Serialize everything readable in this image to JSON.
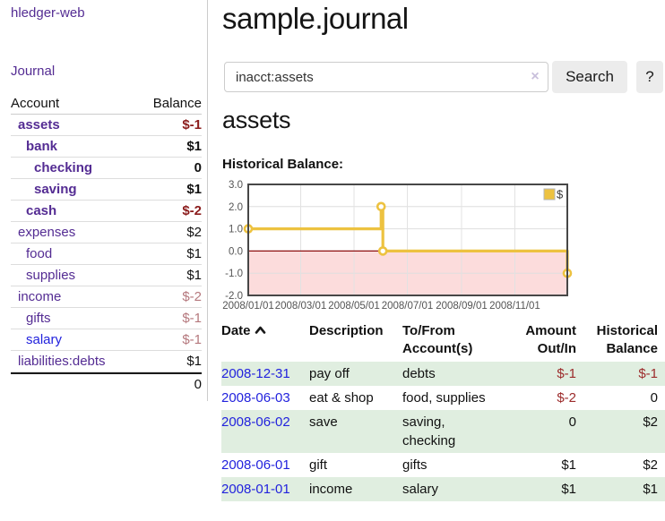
{
  "app": {
    "brand": "hledger-web"
  },
  "colors": {
    "link_purple": "#542c93",
    "link_blue": "#2222dd",
    "negative_strong": "#8b1c1c",
    "negative_muted": "#b5787d",
    "register_negative": "#9c2b2b",
    "row_shade_green": "#e0eee0",
    "button_gray": "#ececec",
    "chart_line_yellow": "#edc240",
    "chart_negative_fill": "#fcdcdc",
    "chart_zero_line": "#8e1111"
  },
  "sidebar": {
    "nav": {
      "journal_label": "Journal"
    },
    "accounts_table": {
      "headers": {
        "account": "Account",
        "balance": "Balance"
      },
      "rows": [
        {
          "name": "assets",
          "depth": 1,
          "bold": true,
          "balance": "$-1",
          "balance_style": "neg-strong",
          "link_style": "purple"
        },
        {
          "name": "bank",
          "depth": 2,
          "bold": true,
          "balance": "$1",
          "balance_style": "normal",
          "link_style": "purple"
        },
        {
          "name": "checking",
          "depth": 3,
          "bold": true,
          "balance": "0",
          "balance_style": "normal",
          "link_style": "purple"
        },
        {
          "name": "saving",
          "depth": 3,
          "bold": true,
          "balance": "$1",
          "balance_style": "normal",
          "link_style": "purple"
        },
        {
          "name": "cash",
          "depth": 2,
          "bold": true,
          "balance": "$-2",
          "balance_style": "neg-strong",
          "link_style": "purple"
        },
        {
          "name": "expenses",
          "depth": 1,
          "bold": false,
          "balance": "$2",
          "balance_style": "normal",
          "link_style": "purple"
        },
        {
          "name": "food",
          "depth": 2,
          "bold": false,
          "balance": "$1",
          "balance_style": "normal",
          "link_style": "purple"
        },
        {
          "name": "supplies",
          "depth": 2,
          "bold": false,
          "balance": "$1",
          "balance_style": "normal",
          "link_style": "purple"
        },
        {
          "name": "income",
          "depth": 1,
          "bold": false,
          "balance": "$-2",
          "balance_style": "neg-muted",
          "link_style": "purple"
        },
        {
          "name": "gifts",
          "depth": 2,
          "bold": false,
          "balance": "$-1",
          "balance_style": "neg-muted",
          "link_style": "purple"
        },
        {
          "name": "salary",
          "depth": 2,
          "bold": false,
          "balance": "$-1",
          "balance_style": "neg-muted",
          "link_style": "blue"
        },
        {
          "name": "liabilities:debts",
          "depth": 1,
          "bold": false,
          "balance": "$1",
          "balance_style": "normal",
          "link_style": "purple"
        }
      ],
      "total": "0"
    }
  },
  "main": {
    "title": "sample.journal",
    "search": {
      "value": "inacct:assets",
      "clear_icon": "×",
      "button_label": "Search",
      "help_label": "?"
    },
    "account_heading": "assets",
    "chart_heading": "Historical Balance:"
  },
  "chart_data": {
    "type": "line",
    "title": "Historical Balance",
    "step": true,
    "series": [
      {
        "name": "$",
        "color": "#edc240",
        "points": [
          {
            "date": "2008-01-01",
            "x_day": 0,
            "y": 1
          },
          {
            "date": "2008-06-01",
            "x_day": 152,
            "y": 2
          },
          {
            "date": "2008-06-03",
            "x_day": 154,
            "y": 0
          },
          {
            "date": "2008-12-31",
            "x_day": 365,
            "y": -1
          }
        ]
      }
    ],
    "xlim_days": [
      0,
      365
    ],
    "ylim": [
      -2,
      3
    ],
    "y_ticks": [
      {
        "v": 3,
        "label": "3.0"
      },
      {
        "v": 2,
        "label": "2.0"
      },
      {
        "v": 1,
        "label": "1.0"
      },
      {
        "v": 0,
        "label": "0.0"
      },
      {
        "v": -1,
        "label": "-1.0"
      },
      {
        "v": -2,
        "label": "-2.0"
      }
    ],
    "x_ticks": [
      {
        "day": 0,
        "label": "2008/01/01"
      },
      {
        "day": 60,
        "label": "2008/03/01"
      },
      {
        "day": 121,
        "label": "2008/05/01"
      },
      {
        "day": 182,
        "label": "2008/07/01"
      },
      {
        "day": 244,
        "label": "2008/09/01"
      },
      {
        "day": 305,
        "label": "2008/11/01"
      }
    ],
    "grid": true,
    "legend": {
      "label": "$",
      "position": "top-right"
    },
    "negative_region_fill": "#fcdcdc",
    "zero_line_color": "#8e1111"
  },
  "register": {
    "columns": [
      {
        "id": "date",
        "lines": [
          "Date"
        ],
        "align": "left",
        "sorted": "asc"
      },
      {
        "id": "description",
        "lines": [
          "Description"
        ],
        "align": "left"
      },
      {
        "id": "accounts",
        "lines": [
          "To/From",
          "Account(s)"
        ],
        "align": "left"
      },
      {
        "id": "amount",
        "lines": [
          "Amount",
          "Out/In"
        ],
        "align": "right"
      },
      {
        "id": "balance",
        "lines": [
          "Historical",
          "Balance"
        ],
        "align": "right"
      }
    ],
    "rows": [
      {
        "date": "2008-12-31",
        "description": "pay off",
        "accounts": "debts",
        "amount": "$-1",
        "amount_negative": true,
        "balance": "$-1",
        "balance_negative": true,
        "shaded": true
      },
      {
        "date": "2008-06-03",
        "description": "eat & shop",
        "accounts": "food, supplies",
        "amount": "$-2",
        "amount_negative": true,
        "balance": "0",
        "balance_negative": false,
        "shaded": false
      },
      {
        "date": "2008-06-02",
        "description": "save",
        "accounts": "saving, checking",
        "amount": "0",
        "amount_negative": false,
        "balance": "$2",
        "balance_negative": false,
        "shaded": true
      },
      {
        "date": "2008-06-01",
        "description": "gift",
        "accounts": "gifts",
        "amount": "$1",
        "amount_negative": false,
        "balance": "$2",
        "balance_negative": false,
        "shaded": false
      },
      {
        "date": "2008-01-01",
        "description": "income",
        "accounts": "salary",
        "amount": "$1",
        "amount_negative": false,
        "balance": "$1",
        "balance_negative": false,
        "shaded": true
      }
    ]
  }
}
